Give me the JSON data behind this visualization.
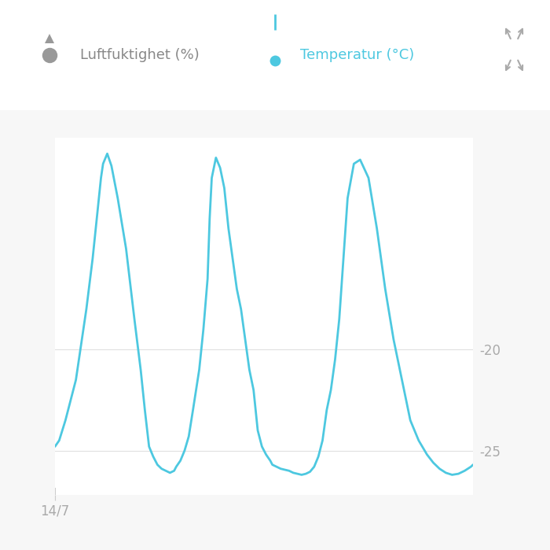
{
  "background_color": "#f7f7f7",
  "plot_bg_color": "#ffffff",
  "line_color": "#4dc8e0",
  "line_width": 2.0,
  "grid_color": "#e0e0e0",
  "ylabel_color": "#aaaaaa",
  "xlabel_label": "14/7",
  "xlabel_color": "#aaaaaa",
  "ylim": [
    -27.2,
    -9.5
  ],
  "legend_humidity_label": "Luftfuktighet (%)",
  "legend_temp_label": "Temperatur (°C)",
  "legend_humidity_color": "#999999",
  "legend_temp_color": "#4dc8e0",
  "x": [
    0.0,
    1.0,
    2.5,
    5.0,
    7.5,
    9.0,
    10.0,
    11.0,
    11.5,
    12.5,
    13.5,
    15.0,
    17.0,
    19.0,
    20.5,
    21.5,
    22.5,
    23.5,
    24.5,
    25.5,
    26.5,
    27.5,
    28.5,
    29.0,
    30.0,
    31.0,
    32.0,
    33.0,
    34.5,
    35.5,
    36.5,
    37.0,
    37.5,
    38.5,
    39.5,
    40.5,
    41.5,
    42.5,
    43.5,
    44.5,
    45.5,
    46.5,
    47.5,
    48.0,
    48.5,
    49.5,
    50.5,
    51.5,
    52.0,
    53.0,
    54.0,
    55.0,
    56.0,
    57.0,
    58.0,
    59.0,
    60.0,
    61.0,
    62.0,
    63.0,
    64.0,
    65.0,
    66.0,
    67.0,
    68.0,
    69.0,
    70.0,
    71.5,
    73.0,
    75.0,
    77.0,
    79.0,
    81.0,
    83.0,
    85.0,
    87.0,
    89.0,
    90.5,
    92.0,
    93.5,
    95.0,
    96.5,
    98.0,
    99.5,
    100.0
  ],
  "y": [
    -24.8,
    -24.5,
    -23.5,
    -21.5,
    -18.0,
    -15.5,
    -13.5,
    -11.5,
    -10.8,
    -10.3,
    -10.9,
    -12.5,
    -15.0,
    -18.5,
    -21.0,
    -23.0,
    -24.8,
    -25.3,
    -25.7,
    -25.9,
    -26.0,
    -26.1,
    -26.0,
    -25.8,
    -25.5,
    -25.0,
    -24.3,
    -23.0,
    -21.0,
    -19.0,
    -16.5,
    -13.5,
    -11.5,
    -10.5,
    -11.0,
    -12.0,
    -14.0,
    -15.5,
    -17.0,
    -18.0,
    -19.5,
    -21.0,
    -22.0,
    -23.0,
    -24.0,
    -24.8,
    -25.2,
    -25.5,
    -25.7,
    -25.8,
    -25.9,
    -25.95,
    -26.0,
    -26.1,
    -26.15,
    -26.2,
    -26.15,
    -26.05,
    -25.8,
    -25.3,
    -24.5,
    -23.0,
    -22.0,
    -20.5,
    -18.5,
    -15.5,
    -12.5,
    -10.8,
    -10.6,
    -11.5,
    -14.0,
    -17.0,
    -19.5,
    -21.5,
    -23.5,
    -24.5,
    -25.2,
    -25.6,
    -25.9,
    -26.1,
    -26.2,
    -26.15,
    -26.0,
    -25.8,
    -25.7
  ],
  "xlim": [
    0,
    100
  ]
}
